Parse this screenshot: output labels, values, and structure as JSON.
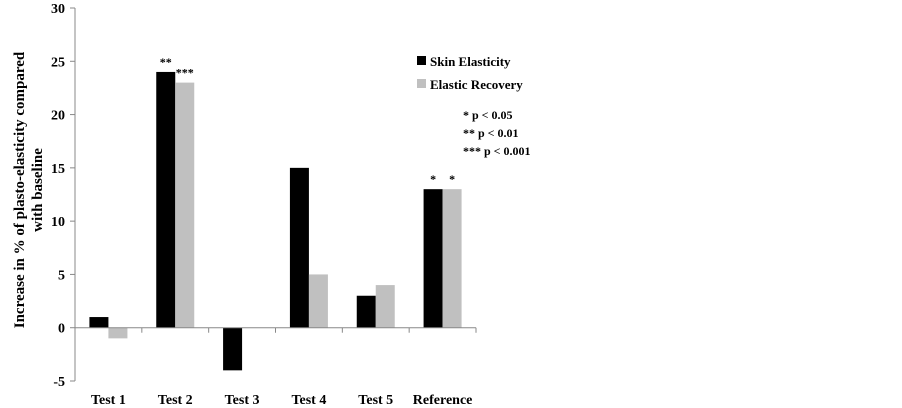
{
  "chart_data": {
    "type": "bar",
    "categories": [
      "Test 1",
      "Test 2",
      "Test 3",
      "Test 4",
      "Test 5",
      "Reference"
    ],
    "series": [
      {
        "name": "Skin Elasticity",
        "color": "#000000",
        "values": [
          1,
          24,
          -4,
          15,
          3,
          13
        ],
        "significance": [
          "",
          "**",
          "",
          "",
          "",
          "*"
        ]
      },
      {
        "name": "Elastic Recovery",
        "color": "#c0c0c0",
        "values": [
          -1,
          23,
          0,
          5,
          4,
          13
        ],
        "significance": [
          "",
          "***",
          "",
          "",
          "",
          "*"
        ]
      }
    ],
    "ylabel_line1": "Increase in % of plasto-elasticity compared",
    "ylabel_line2": "with baseline",
    "ylim": [
      -5,
      30
    ],
    "yticks": [
      -5,
      0,
      5,
      10,
      15,
      20,
      25,
      30
    ],
    "legend_position": "right",
    "significance_notes": [
      "* p < 0.05",
      "** p < 0.01",
      "*** p < 0.001"
    ],
    "grid": false
  }
}
